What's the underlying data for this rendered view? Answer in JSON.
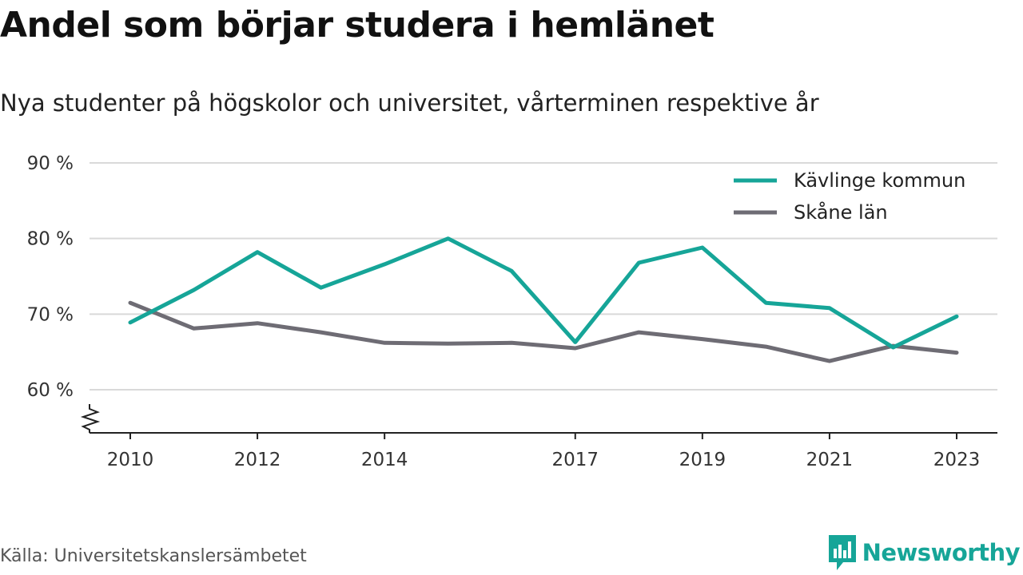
{
  "header": {
    "title": "Andel som börjar studera i hemlänet",
    "subtitle": "Nya studenter på högskolor och universitet, vårterminen respektive år"
  },
  "footer": {
    "source": "Källa: Universitetskanslersämbetet",
    "brand": "Newsworthy"
  },
  "colors": {
    "accent": "#16a598",
    "series_1": "#16a598",
    "series_2": "#6e6c74",
    "grid": "#d9d9d9"
  },
  "chart_data": {
    "type": "line",
    "title": "Andel som börjar studera i hemlänet",
    "subtitle": "Nya studenter på högskolor och universitet, vårterminen respektive år",
    "x": [
      2010,
      2011,
      2012,
      2013,
      2014,
      2015,
      2016,
      2017,
      2018,
      2019,
      2020,
      2021,
      2022,
      2023
    ],
    "x_tick_labels": [
      "2010",
      "2012",
      "2014",
      "2017",
      "2019",
      "2021",
      "2023"
    ],
    "y_ticks": [
      60,
      70,
      80,
      90
    ],
    "y_tick_labels": [
      "60 %",
      "70 %",
      "80 %",
      "90 %"
    ],
    "ylim": [
      54.3,
      90
    ],
    "y_axis_break": true,
    "grid": true,
    "legend_position": "top-right",
    "series": [
      {
        "name": "Kävlinge kommun",
        "values": [
          68.9,
          73.2,
          78.2,
          73.5,
          76.6,
          80.0,
          75.7,
          66.3,
          76.8,
          78.8,
          71.5,
          70.8,
          65.6,
          69.7
        ]
      },
      {
        "name": "Skåne län",
        "values": [
          71.5,
          68.1,
          68.8,
          67.6,
          66.2,
          66.1,
          66.2,
          65.5,
          67.6,
          66.7,
          65.7,
          63.8,
          65.8,
          64.9
        ]
      }
    ]
  }
}
